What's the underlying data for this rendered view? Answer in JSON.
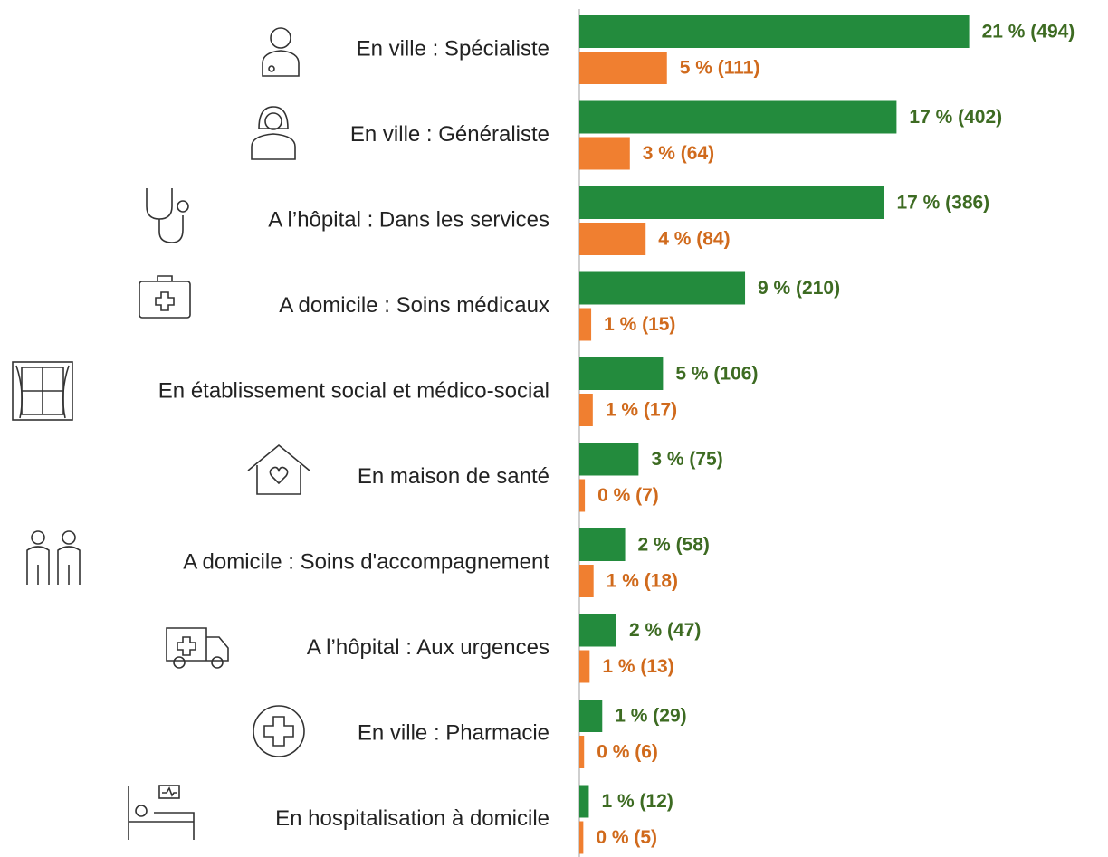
{
  "chart_data": {
    "type": "hbar",
    "categories": [
      "En ville : Spécialiste",
      "En ville : Généraliste",
      "A l’hôpital : Dans les services",
      "A domicile : Soins médicaux",
      "En établissement social et médico-social",
      "En maison de santé",
      "A domicile : Soins d'accompagnement",
      "A l’hôpital : Aux urgences",
      "En ville : Pharmacie",
      "En hospitalisation à domicile"
    ],
    "series": [
      {
        "color": "#238b3d",
        "label_color": "#3d6b22",
        "values": [
          494,
          402,
          386,
          210,
          106,
          75,
          58,
          47,
          29,
          12
        ],
        "value_labels": [
          "21 % (494)",
          "17 % (402)",
          "17 % (386)",
          "9 % (210)",
          "5 % (106)",
          "3 % (75)",
          "2 % (58)",
          "2 % (47)",
          "1 % (29)",
          "1 % (12)"
        ]
      },
      {
        "color": "#f07f30",
        "label_color": "#d06a1c",
        "values": [
          111,
          64,
          84,
          15,
          17,
          7,
          18,
          13,
          6,
          5
        ],
        "value_labels": [
          "5 % (111)",
          "3 % (64)",
          "4 % (84)",
          "1 % (15)",
          "1 % (17)",
          "0 % (7)",
          "1 % (18)",
          "1 % (13)",
          "0 % (6)",
          "0 % (5)"
        ]
      }
    ],
    "xlim": [
      0,
      670
    ]
  }
}
